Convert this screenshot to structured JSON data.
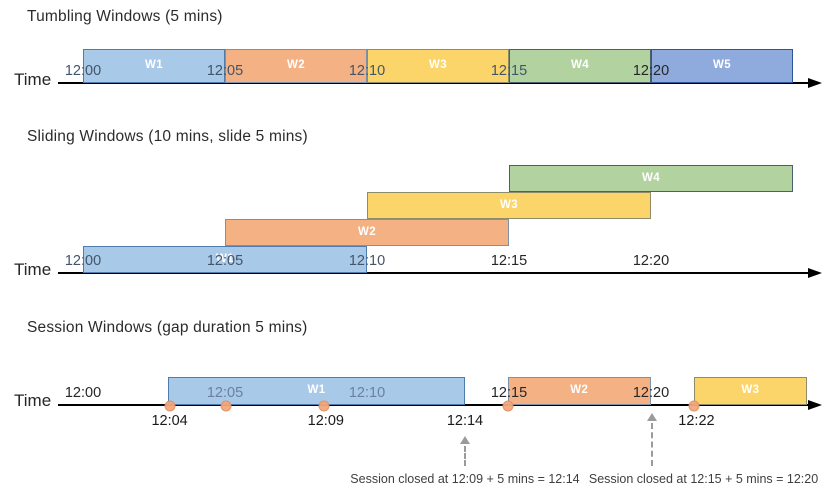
{
  "diagram": {
    "time_axis_label": "Time",
    "palette": {
      "blue_light": {
        "fill": "#A9C9E9",
        "stroke": "#4E7CAC"
      },
      "orange": {
        "fill": "#F4B183",
        "stroke": "#7D92AA"
      },
      "yellow": {
        "fill": "#FBD569",
        "stroke": "#8F8C6A"
      },
      "green": {
        "fill": "#B2D3A0",
        "stroke": "#47626E"
      },
      "blue_medium": {
        "fill": "#8FAADC",
        "stroke": "#2F5597"
      }
    },
    "tick_tone_colors": {
      "dark": "#262626",
      "slate": "#44546A",
      "muted": "#6C7FA0"
    },
    "event_dot": {
      "fill": "#F2A77C",
      "stroke": "#E2905F"
    },
    "sections": [
      {
        "id": "tumbling",
        "title": "Tumbling Windows (5 mins)",
        "ticks": [
          {
            "label": "12:00",
            "min": 0,
            "tone": "slate"
          },
          {
            "label": "12:05",
            "min": 5,
            "tone": "slate"
          },
          {
            "label": "12:10",
            "min": 10,
            "tone": "slate"
          },
          {
            "label": "12:15",
            "min": 15,
            "tone": "slate"
          },
          {
            "label": "12:20",
            "min": 20,
            "tone": "dark"
          }
        ],
        "windows": [
          {
            "label": "W1",
            "start": 0,
            "end": 5,
            "row": 0,
            "color": "blue_light"
          },
          {
            "label": "W2",
            "start": 5,
            "end": 10,
            "row": 0,
            "color": "orange"
          },
          {
            "label": "W3",
            "start": 10,
            "end": 15,
            "row": 0,
            "color": "yellow"
          },
          {
            "label": "W4",
            "start": 15,
            "end": 20,
            "row": 0,
            "color": "green"
          },
          {
            "label": "W5",
            "start": 20,
            "end": 25,
            "row": 0,
            "color": "blue_medium"
          }
        ]
      },
      {
        "id": "sliding",
        "title": "Sliding Windows (10 mins, slide 5 mins)",
        "ticks": [
          {
            "label": "12:00",
            "min": 0,
            "tone": "slate"
          },
          {
            "label": "12:05",
            "min": 5,
            "tone": "slate"
          },
          {
            "label": "12:10",
            "min": 10,
            "tone": "slate"
          },
          {
            "label": "12:15",
            "min": 15,
            "tone": "dark"
          },
          {
            "label": "12:20",
            "min": 20,
            "tone": "dark"
          }
        ],
        "windows": [
          {
            "label": "W1",
            "start": 0,
            "end": 10,
            "row": 0,
            "color": "blue_light"
          },
          {
            "label": "W2",
            "start": 5,
            "end": 15,
            "row": 1,
            "color": "orange"
          },
          {
            "label": "W3",
            "start": 10,
            "end": 20,
            "row": 2,
            "color": "yellow"
          },
          {
            "label": "W4",
            "start": 15,
            "end": 25,
            "row": 3,
            "color": "green"
          }
        ]
      },
      {
        "id": "session",
        "title": "Session Windows (gap duration 5 mins)",
        "ticks": [
          {
            "label": "12:00",
            "min": 0,
            "tone": "dark"
          },
          {
            "label": "12:05",
            "min": 5,
            "tone": "muted"
          },
          {
            "label": "12:10",
            "min": 10,
            "tone": "muted"
          },
          {
            "label": "12:15",
            "min": 15,
            "tone": "dark"
          },
          {
            "label": "12:20",
            "min": 20,
            "tone": "dark"
          }
        ],
        "windows": [
          {
            "label": "W1",
            "start": 3.0,
            "end": 13.45,
            "row": 0,
            "color": "blue_light"
          },
          {
            "label": "W2",
            "start": 14.95,
            "end": 20.0,
            "row": 0,
            "color": "orange"
          },
          {
            "label": "W3",
            "start": 21.5,
            "end": 25.5,
            "row": 0,
            "color": "yellow"
          }
        ],
        "events": [
          {
            "min": 3.05
          },
          {
            "min": 5.05
          },
          {
            "min": 8.5
          },
          {
            "min": 14.95
          },
          {
            "min": 21.5
          }
        ],
        "event_labels": [
          {
            "label": "12:04",
            "min": 3.05
          },
          {
            "label": "12:09",
            "min": 8.55
          },
          {
            "label": "12:14",
            "min": 13.45
          },
          {
            "label": "12:22",
            "min": 21.6
          }
        ],
        "annotations": [
          {
            "text": "Session closed at 12:09 + 5 mins = 12:14",
            "arrow_min": 13.45,
            "text_min": 13.45
          },
          {
            "text": "Session closed at 12:15 + 5 mins = 12:20",
            "arrow_min": 20.05,
            "text_min": 21.85
          }
        ]
      }
    ]
  }
}
